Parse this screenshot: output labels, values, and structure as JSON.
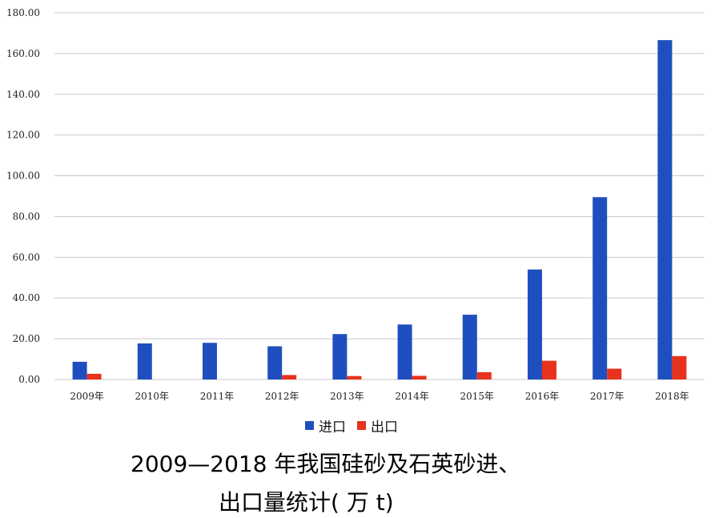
{
  "chart_data": {
    "type": "bar",
    "categories": [
      "2009年",
      "2010年",
      "2011年",
      "2012年",
      "2013年",
      "2014年",
      "2015年",
      "2016年",
      "2017年",
      "2018年"
    ],
    "series": [
      {
        "name": "进口",
        "color": "#1f4fbf",
        "values": [
          8.7,
          17.7,
          18.0,
          16.3,
          22.3,
          27.0,
          31.8,
          54.0,
          89.5,
          166.6
        ]
      },
      {
        "name": "出口",
        "color": "#e8321c",
        "values": [
          2.8,
          0,
          0,
          2.2,
          1.7,
          1.8,
          3.6,
          9.2,
          5.3,
          11.5
        ]
      }
    ],
    "ylim": [
      0,
      180
    ],
    "yticks": [
      "0.00",
      "20.00",
      "40.00",
      "60.00",
      "80.00",
      "100.00",
      "120.00",
      "140.00",
      "160.00",
      "180.00"
    ],
    "grid": true,
    "legend_position": "bottom"
  },
  "caption": {
    "line1": "2009—2018 年我国硅砂及石英砂进、",
    "line2": "出口量统计( 万 t)"
  }
}
